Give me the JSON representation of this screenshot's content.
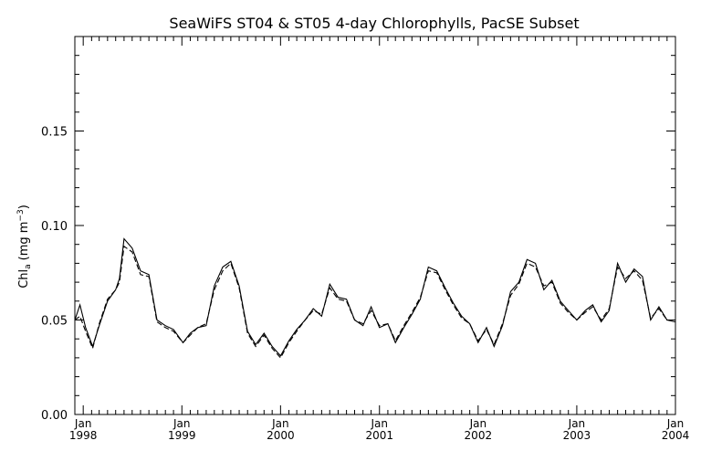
{
  "chart_data": {
    "type": "line",
    "title": "SeaWiFS ST04 & ST05 4-day Chlorophylls, PacSE Subset",
    "xlabel": "",
    "ylabel": "Chl_a (mg m^-3)",
    "ylabel_parts": {
      "base": "Chl",
      "sub": "a",
      "units_pre": "(mg m",
      "units_sup": "−3",
      "units_post": ")"
    },
    "xlim": [
      "1997-12-01",
      "2004-01-01"
    ],
    "ylim": [
      0.0,
      0.2
    ],
    "yticks": [
      0.0,
      0.05,
      0.1,
      0.15
    ],
    "ytick_labels": [
      "0.00",
      "0.05",
      "0.10",
      "0.15"
    ],
    "xticks": [
      {
        "date": "1998-01-01",
        "month": "Jan",
        "year": "1998"
      },
      {
        "date": "1999-01-01",
        "month": "Jan",
        "year": "1999"
      },
      {
        "date": "2000-01-01",
        "month": "Jan",
        "year": "2000"
      },
      {
        "date": "2001-01-01",
        "month": "Jan",
        "year": "2001"
      },
      {
        "date": "2002-01-01",
        "month": "Jan",
        "year": "2002"
      },
      {
        "date": "2003-01-01",
        "month": "Jan",
        "year": "2003"
      },
      {
        "date": "2004-01-01",
        "month": "Jan",
        "year": "2004"
      }
    ],
    "grid": false,
    "legend": "none",
    "series": [
      {
        "style": "solid",
        "color": "#000000",
        "points": [
          [
            "1997-12-01",
            0.05
          ],
          [
            "1997-12-20",
            0.058
          ],
          [
            "1998-01-10",
            0.046
          ],
          [
            "1998-02-05",
            0.036
          ],
          [
            "1998-03-01",
            0.047
          ],
          [
            "1998-04-01",
            0.06
          ],
          [
            "1998-05-01",
            0.066
          ],
          [
            "1998-05-15",
            0.072
          ],
          [
            "1998-06-01",
            0.093
          ],
          [
            "1998-07-01",
            0.088
          ],
          [
            "1998-08-01",
            0.076
          ],
          [
            "1998-09-01",
            0.074
          ],
          [
            "1998-10-01",
            0.05
          ],
          [
            "1998-11-01",
            0.047
          ],
          [
            "1998-12-01",
            0.045
          ],
          [
            "1999-01-05",
            0.038
          ],
          [
            "1999-02-01",
            0.043
          ],
          [
            "1999-03-01",
            0.046
          ],
          [
            "1999-04-01",
            0.047
          ],
          [
            "1999-05-01",
            0.068
          ],
          [
            "1999-06-01",
            0.078
          ],
          [
            "1999-07-01",
            0.081
          ],
          [
            "1999-08-01",
            0.068
          ],
          [
            "1999-09-01",
            0.044
          ],
          [
            "1999-10-01",
            0.037
          ],
          [
            "1999-11-01",
            0.043
          ],
          [
            "1999-12-01",
            0.036
          ],
          [
            "2000-01-01",
            0.031
          ],
          [
            "2000-02-01",
            0.039
          ],
          [
            "2000-03-01",
            0.045
          ],
          [
            "2000-04-01",
            0.05
          ],
          [
            "2000-05-01",
            0.056
          ],
          [
            "2000-06-01",
            0.052
          ],
          [
            "2000-07-01",
            0.069
          ],
          [
            "2000-08-01",
            0.062
          ],
          [
            "2000-09-01",
            0.061
          ],
          [
            "2000-10-01",
            0.05
          ],
          [
            "2000-11-01",
            0.047
          ],
          [
            "2000-12-01",
            0.057
          ],
          [
            "2001-01-01",
            0.046
          ],
          [
            "2001-02-01",
            0.048
          ],
          [
            "2001-03-01",
            0.038
          ],
          [
            "2001-04-01",
            0.046
          ],
          [
            "2001-05-01",
            0.053
          ],
          [
            "2001-06-01",
            0.061
          ],
          [
            "2001-07-01",
            0.078
          ],
          [
            "2001-08-01",
            0.076
          ],
          [
            "2001-09-01",
            0.067
          ],
          [
            "2001-10-01",
            0.059
          ],
          [
            "2001-11-01",
            0.052
          ],
          [
            "2001-12-01",
            0.048
          ],
          [
            "2002-01-01",
            0.038
          ],
          [
            "2002-02-01",
            0.046
          ],
          [
            "2002-03-01",
            0.036
          ],
          [
            "2002-04-01",
            0.047
          ],
          [
            "2002-05-01",
            0.065
          ],
          [
            "2002-06-01",
            0.07
          ],
          [
            "2002-07-01",
            0.082
          ],
          [
            "2002-08-01",
            0.08
          ],
          [
            "2002-09-01",
            0.066
          ],
          [
            "2002-10-01",
            0.071
          ],
          [
            "2002-11-01",
            0.06
          ],
          [
            "2002-12-01",
            0.055
          ],
          [
            "2003-01-01",
            0.05
          ],
          [
            "2003-02-01",
            0.055
          ],
          [
            "2003-03-01",
            0.058
          ],
          [
            "2003-04-01",
            0.049
          ],
          [
            "2003-05-01",
            0.055
          ],
          [
            "2003-06-01",
            0.08
          ],
          [
            "2003-07-01",
            0.07
          ],
          [
            "2003-08-01",
            0.077
          ],
          [
            "2003-09-01",
            0.073
          ],
          [
            "2003-10-01",
            0.05
          ],
          [
            "2003-11-01",
            0.057
          ],
          [
            "2003-12-01",
            0.05
          ],
          [
            "2004-01-01",
            0.049
          ]
        ]
      },
      {
        "style": "dashed",
        "color": "#000000",
        "points": [
          [
            "1997-12-01",
            0.05
          ],
          [
            "1997-12-20",
            0.052
          ],
          [
            "1998-01-10",
            0.044
          ],
          [
            "1998-02-05",
            0.035
          ],
          [
            "1998-03-01",
            0.048
          ],
          [
            "1998-04-01",
            0.061
          ],
          [
            "1998-05-01",
            0.066
          ],
          [
            "1998-05-15",
            0.07
          ],
          [
            "1998-06-01",
            0.089
          ],
          [
            "1998-07-01",
            0.086
          ],
          [
            "1998-08-01",
            0.074
          ],
          [
            "1998-09-01",
            0.073
          ],
          [
            "1998-10-01",
            0.049
          ],
          [
            "1998-11-01",
            0.046
          ],
          [
            "1998-12-01",
            0.044
          ],
          [
            "1999-01-05",
            0.038
          ],
          [
            "1999-02-01",
            0.042
          ],
          [
            "1999-03-01",
            0.046
          ],
          [
            "1999-04-01",
            0.048
          ],
          [
            "1999-05-01",
            0.066
          ],
          [
            "1999-06-01",
            0.076
          ],
          [
            "1999-07-01",
            0.08
          ],
          [
            "1999-08-01",
            0.067
          ],
          [
            "1999-09-01",
            0.043
          ],
          [
            "1999-10-01",
            0.036
          ],
          [
            "1999-11-01",
            0.042
          ],
          [
            "1999-12-01",
            0.035
          ],
          [
            "2000-01-01",
            0.03
          ],
          [
            "2000-02-01",
            0.038
          ],
          [
            "2000-03-01",
            0.044
          ],
          [
            "2000-04-01",
            0.05
          ],
          [
            "2000-05-01",
            0.055
          ],
          [
            "2000-06-01",
            0.053
          ],
          [
            "2000-07-01",
            0.067
          ],
          [
            "2000-08-01",
            0.061
          ],
          [
            "2000-09-01",
            0.06
          ],
          [
            "2000-10-01",
            0.05
          ],
          [
            "2000-11-01",
            0.048
          ],
          [
            "2000-12-01",
            0.055
          ],
          [
            "2001-01-01",
            0.047
          ],
          [
            "2001-02-01",
            0.048
          ],
          [
            "2001-03-01",
            0.039
          ],
          [
            "2001-04-01",
            0.047
          ],
          [
            "2001-05-01",
            0.054
          ],
          [
            "2001-06-01",
            0.062
          ],
          [
            "2001-07-01",
            0.076
          ],
          [
            "2001-08-01",
            0.075
          ],
          [
            "2001-09-01",
            0.066
          ],
          [
            "2001-10-01",
            0.058
          ],
          [
            "2001-11-01",
            0.051
          ],
          [
            "2001-12-01",
            0.048
          ],
          [
            "2002-01-01",
            0.039
          ],
          [
            "2002-02-01",
            0.045
          ],
          [
            "2002-03-01",
            0.037
          ],
          [
            "2002-04-01",
            0.048
          ],
          [
            "2002-05-01",
            0.063
          ],
          [
            "2002-06-01",
            0.069
          ],
          [
            "2002-07-01",
            0.08
          ],
          [
            "2002-08-01",
            0.078
          ],
          [
            "2002-09-01",
            0.068
          ],
          [
            "2002-10-01",
            0.07
          ],
          [
            "2002-11-01",
            0.059
          ],
          [
            "2002-12-01",
            0.054
          ],
          [
            "2003-01-01",
            0.05
          ],
          [
            "2003-02-01",
            0.054
          ],
          [
            "2003-03-01",
            0.057
          ],
          [
            "2003-04-01",
            0.05
          ],
          [
            "2003-05-01",
            0.056
          ],
          [
            "2003-06-01",
            0.078
          ],
          [
            "2003-07-01",
            0.072
          ],
          [
            "2003-08-01",
            0.076
          ],
          [
            "2003-09-01",
            0.071
          ],
          [
            "2003-10-01",
            0.051
          ],
          [
            "2003-11-01",
            0.056
          ],
          [
            "2003-12-01",
            0.05
          ],
          [
            "2004-01-01",
            0.05
          ]
        ]
      }
    ]
  }
}
